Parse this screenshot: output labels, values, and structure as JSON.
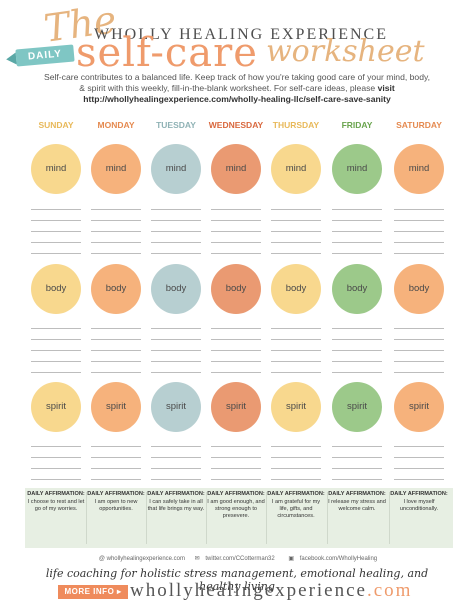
{
  "header": {
    "the": "The",
    "brand_title": "WHOLLY HEALING EXPERIENCE",
    "daily_banner": "DAILY",
    "self_care": "self-care",
    "worksheet": "worksheet",
    "intro_text": "Self-care contributes to a balanced life. Keep track of how you're taking good care of your mind, body, & spirit with this weekly, fill-in-the-blank worksheet. For self-care ideas, please",
    "intro_visit": "visit http://whollyhealingexperience.com/wholly-healing-llc/self-care-save-sanity"
  },
  "days": [
    {
      "label": "SUNDAY",
      "label_color": "#e8b95a",
      "mind": "#f8d88e",
      "body": "#f8d88e",
      "spirit": "#f8d88e",
      "affirmation": "I choose to rest and let go of my worries."
    },
    {
      "label": "MONDAY",
      "label_color": "#e58a50",
      "mind": "#f6b27c",
      "body": "#f6b27c",
      "spirit": "#f6b27c",
      "affirmation": "I am open to new opportunities."
    },
    {
      "label": "TUESDAY",
      "label_color": "#8fb2b5",
      "mind": "#b7cfd1",
      "body": "#b7cfd1",
      "spirit": "#b7cfd1",
      "affirmation": "I can safely take in all that life brings my way."
    },
    {
      "label": "WEDNESDAY",
      "label_color": "#d9683e",
      "mind": "#ea9a72",
      "body": "#ea9a72",
      "spirit": "#ea9a72",
      "affirmation": "I am good enough, and strong enough to presevere."
    },
    {
      "label": "THURSDAY",
      "label_color": "#e8b95a",
      "mind": "#f8d88e",
      "body": "#f8d88e",
      "spirit": "#f8d88e",
      "affirmation": "I am grateful for my life, gifts, and circumstances."
    },
    {
      "label": "FRIDAY",
      "label_color": "#6aa44e",
      "mind": "#9cc98a",
      "body": "#9cc98a",
      "spirit": "#9cc98a",
      "affirmation": "I release my stress and welcome calm."
    },
    {
      "label": "SATURDAY",
      "label_color": "#e58a50",
      "mind": "#f6b27c",
      "body": "#f6b27c",
      "spirit": "#f6b27c",
      "affirmation": "I love myself unconditionally."
    }
  ],
  "circle_labels": {
    "mind": "mind",
    "body": "body",
    "spirit": "spirit"
  },
  "affirmation_title": "DAILY AFFIRMATION:",
  "footer": {
    "instagram": "@ whollyhealingexperience.com",
    "twitter": "twitter.com/CCotterman32",
    "facebook": "facebook.com/WhollyHealing",
    "tagline": "life coaching for holistic stress management, emotional healing, and healthy living",
    "more_info": "MORE INFO ▸",
    "brand": "whollyhealingexperience",
    "tld": ".com"
  }
}
